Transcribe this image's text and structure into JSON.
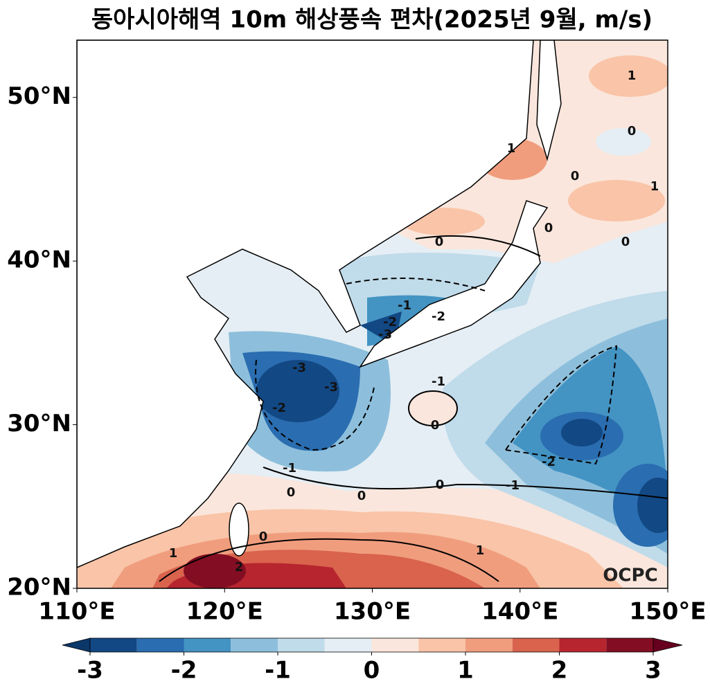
{
  "chart_data": {
    "type": "contour-map",
    "title": "동아시아해역 10m 해상풍속 편차(2025년 9월, m/s)",
    "xlim": [
      110,
      150
    ],
    "ylim": [
      20,
      53.5
    ],
    "xticks": [
      {
        "value": 110,
        "label": "110°E"
      },
      {
        "value": 120,
        "label": "120°E"
      },
      {
        "value": 130,
        "label": "130°E"
      },
      {
        "value": 140,
        "label": "140°E"
      },
      {
        "value": 150,
        "label": "150°E"
      }
    ],
    "yticks": [
      {
        "value": 20,
        "label": "20°N"
      },
      {
        "value": 30,
        "label": "30°N"
      },
      {
        "value": 40,
        "label": "40°N"
      },
      {
        "value": 50,
        "label": "50°N"
      }
    ],
    "colorbar": {
      "levels": [
        -3,
        -2.5,
        -2,
        -1.5,
        -1,
        -0.5,
        0,
        0.5,
        1,
        1.5,
        2,
        2.5,
        3
      ],
      "colors": [
        "#124884",
        "#2a6db0",
        "#4393c3",
        "#8dbfdc",
        "#c0dbea",
        "#e5eef4",
        "#fae6dc",
        "#f9c4a8",
        "#f09d7e",
        "#d9634d",
        "#b7252f",
        "#830e23"
      ],
      "under_color": "#0b3769",
      "over_color": "#67001f",
      "ticks": [
        -3,
        -2,
        -1,
        0,
        1,
        2,
        3
      ]
    },
    "contour_labels": [
      "1",
      "0",
      "1",
      "0",
      "1",
      "0",
      "0",
      "0",
      "-1",
      "-2",
      "-2",
      "-3",
      "-3",
      "-3",
      "-2",
      "-1",
      "0",
      "-1",
      "0",
      "0",
      "0",
      "-1",
      "-2",
      "1",
      "1",
      "2",
      "0"
    ],
    "watermark": "OCPC"
  }
}
